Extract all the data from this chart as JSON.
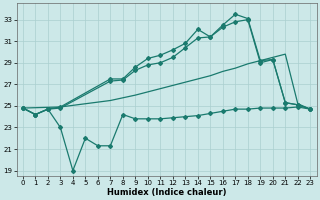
{
  "xlabel": "Humidex (Indice chaleur)",
  "x_ticks": [
    0,
    1,
    2,
    3,
    4,
    5,
    6,
    7,
    8,
    9,
    10,
    11,
    12,
    13,
    14,
    15,
    16,
    17,
    18,
    19,
    20,
    21,
    22,
    23
  ],
  "y_ticks": [
    19,
    21,
    23,
    25,
    27,
    29,
    31,
    33
  ],
  "xlim": [
    -0.5,
    23.5
  ],
  "ylim": [
    18.5,
    34.5
  ],
  "bg_color": "#cce8e8",
  "grid_color": "#aacfcf",
  "line_color": "#1a7a6e",
  "series": {
    "line_low": {
      "x": [
        0,
        1,
        2,
        3,
        4,
        5,
        6,
        7,
        8,
        9,
        10,
        11,
        12,
        13,
        14,
        15,
        16,
        17,
        18,
        19,
        20,
        21,
        22,
        23
      ],
      "y": [
        24.8,
        24.2,
        24.7,
        23.0,
        19.0,
        22.0,
        21.3,
        21.3,
        24.2,
        23.8,
        23.8,
        23.8,
        23.9,
        24.0,
        24.1,
        24.3,
        24.5,
        24.7,
        24.7,
        24.8,
        24.8,
        24.8,
        24.9,
        24.7
      ]
    },
    "line_mid": {
      "x": [
        0,
        1,
        2,
        3,
        7,
        8,
        9,
        10,
        11,
        12,
        13,
        14,
        15,
        16,
        17,
        18,
        19,
        20,
        21,
        22,
        23
      ],
      "y": [
        24.8,
        24.2,
        24.7,
        24.8,
        27.3,
        27.4,
        28.3,
        28.8,
        29.0,
        29.5,
        30.4,
        31.3,
        31.4,
        32.3,
        32.8,
        33.0,
        29.0,
        29.3,
        25.3,
        25.1,
        24.7
      ]
    },
    "line_high": {
      "x": [
        0,
        1,
        2,
        3,
        7,
        8,
        9,
        10,
        11,
        12,
        13,
        14,
        15,
        16,
        17,
        18,
        19,
        20,
        21,
        22,
        23
      ],
      "y": [
        24.8,
        24.2,
        24.7,
        24.9,
        27.5,
        27.5,
        28.6,
        29.4,
        29.7,
        30.2,
        30.8,
        32.1,
        31.4,
        32.5,
        33.5,
        33.1,
        29.2,
        29.3,
        25.3,
        25.1,
        24.7
      ]
    },
    "line_diag": {
      "x": [
        0,
        3,
        7,
        9,
        10,
        11,
        12,
        13,
        14,
        15,
        16,
        17,
        18,
        19,
        20,
        21,
        22,
        23
      ],
      "y": [
        24.8,
        24.9,
        25.5,
        26.0,
        26.3,
        26.6,
        26.9,
        27.2,
        27.5,
        27.8,
        28.2,
        28.5,
        28.9,
        29.2,
        29.5,
        29.8,
        25.2,
        24.7
      ]
    }
  }
}
